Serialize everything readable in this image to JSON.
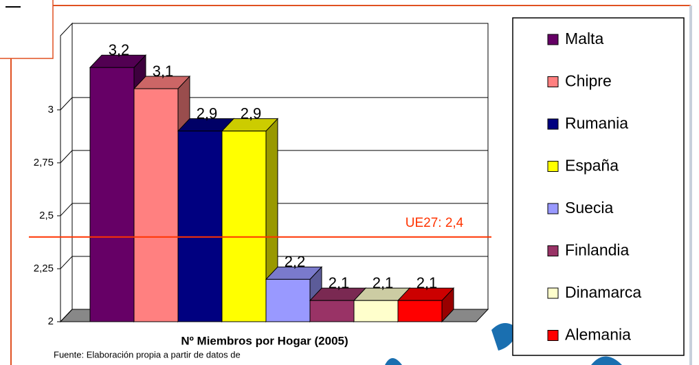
{
  "chart_data": {
    "type": "bar3d",
    "xlabel": "Nº Miembros por Hogar (2005)",
    "source": "Fuente: Elaboración propia a partir de datos de",
    "ylim": [
      2,
      3.35
    ],
    "yticks": [
      2,
      {
        "value": 2.25,
        "label": "2,25"
      },
      {
        "value": 2.5,
        "label": "2,5"
      },
      {
        "value": 2.75,
        "label": "2,75"
      },
      3
    ],
    "grid": true,
    "reference_line": {
      "value": 2.4,
      "label": "UE27: 2,4",
      "color": "#ff3300"
    },
    "legend": "right",
    "series": [
      {
        "name": "Malta",
        "color": "#660066",
        "values": [
          3.2
        ],
        "value_labels": [
          "3,2"
        ]
      },
      {
        "name": "Chipre",
        "color": "#ff8080",
        "values": [
          3.1
        ],
        "value_labels": [
          "3,1"
        ]
      },
      {
        "name": "Rumania",
        "color": "#000080",
        "values": [
          2.9
        ],
        "value_labels": [
          "2,9"
        ]
      },
      {
        "name": "España",
        "color": "#ffff00",
        "values": [
          2.9
        ],
        "value_labels": [
          "2,9"
        ]
      },
      {
        "name": "Suecia",
        "color": "#9999ff",
        "values": [
          2.2
        ],
        "value_labels": [
          "2,2"
        ]
      },
      {
        "name": "Finlandia",
        "color": "#993366",
        "values": [
          2.1
        ],
        "value_labels": [
          "2,1"
        ]
      },
      {
        "name": "Dinamarca",
        "color": "#ffffcc",
        "values": [
          2.1
        ],
        "value_labels": [
          "2,1"
        ]
      },
      {
        "name": "Alemania",
        "color": "#ff0000",
        "values": [
          2.1
        ],
        "value_labels": [
          "2,1"
        ]
      }
    ]
  }
}
